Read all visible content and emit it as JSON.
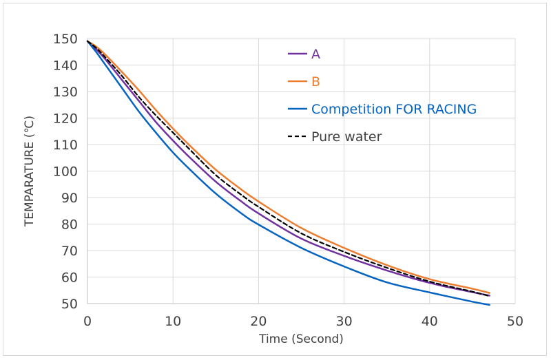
{
  "chart_data": {
    "type": "line",
    "title": "",
    "xlabel": "Time (Second)",
    "ylabel": "TEMPARATURE (℃)",
    "xlim": [
      0,
      50
    ],
    "ylim": [
      50,
      150
    ],
    "x_ticks": [
      "0",
      "10",
      "20",
      "30",
      "40",
      "50"
    ],
    "y_ticks": [
      "50",
      "60",
      "70",
      "80",
      "90",
      "100",
      "110",
      "120",
      "130",
      "140",
      "150"
    ],
    "grid": true,
    "legend_position": "top-right",
    "series": [
      {
        "name": "A",
        "color": "#7030a0",
        "dash": false,
        "x": [
          0,
          1,
          2,
          4,
          6,
          8,
          10,
          12,
          15,
          18,
          20,
          25,
          30,
          35,
          40,
          45,
          47
        ],
        "y": [
          149,
          146,
          142.5,
          134.5,
          126.5,
          118.5,
          111.5,
          105,
          96,
          88.5,
          84,
          74.5,
          68,
          62.5,
          57.8,
          54.3,
          53
        ]
      },
      {
        "name": "B",
        "color": "#ed7d31",
        "dash": false,
        "x": [
          0,
          1,
          2,
          4,
          6,
          8,
          10,
          12,
          15,
          18,
          20,
          25,
          30,
          35,
          40,
          45,
          47
        ],
        "y": [
          149,
          147,
          144.2,
          137.5,
          130.5,
          123,
          116,
          109.5,
          100.5,
          93,
          88.5,
          78.5,
          71,
          64.5,
          59.2,
          55.6,
          54
        ]
      },
      {
        "name": "Competition FOR RACING",
        "color": "#0563c1",
        "dash": false,
        "x": [
          0,
          1,
          2,
          4,
          6,
          8,
          10,
          12,
          15,
          18,
          20,
          25,
          30,
          35,
          40,
          45,
          47
        ],
        "y": [
          149,
          145,
          140.5,
          131.5,
          122.5,
          114.5,
          107,
          100.5,
          91.5,
          84,
          79.8,
          71,
          64,
          58,
          54.2,
          50.7,
          49.5
        ]
      },
      {
        "name": "Pure water",
        "color": "#000000",
        "dash": true,
        "x": [
          0,
          1,
          2,
          4,
          6,
          8,
          10,
          12,
          15,
          18,
          20,
          25,
          30,
          35,
          40,
          45,
          47
        ],
        "y": [
          149,
          146.5,
          143.2,
          136,
          128,
          121,
          114.5,
          108,
          98.5,
          91,
          86.5,
          76.5,
          69.5,
          63.5,
          58.3,
          54.5,
          52.8
        ]
      }
    ]
  }
}
